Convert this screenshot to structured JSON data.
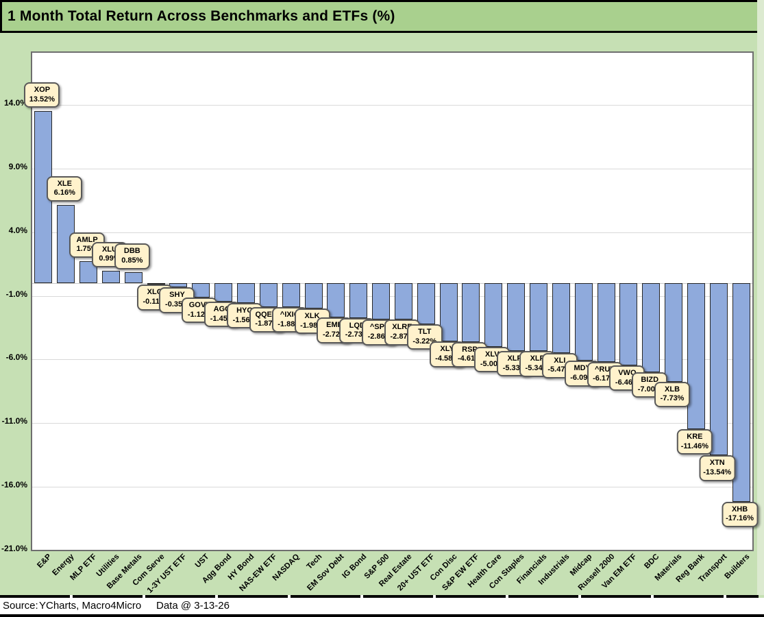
{
  "window": {
    "title": "1 Month Total Return Across Benchmarks and ETFs (%)"
  },
  "footer": {
    "source_label": "Source:",
    "source_value": "YCharts, Macro4Micro",
    "data_stamp": "Data @ 3-13-26"
  },
  "colors": {
    "title_bg": "#A9D08E",
    "chart_bg": "#C6E0B4",
    "plot_bg": "#FFFFFF",
    "gridline": "#D9D9D9",
    "bar_fill": "#8FAADC",
    "bar_border": "#262626",
    "callout_bg": "#FFF2CC",
    "callout_border": "#595959",
    "text": "#000000"
  },
  "chart_data": {
    "type": "bar",
    "title": "1 Month Total Return Across Benchmarks and ETFs (%)",
    "xlabel": "",
    "ylabel": "",
    "ylim": [
      -21.0,
      18.1
    ],
    "grid": true,
    "legend_position": "none",
    "gridline_values": [
      14,
      9,
      4,
      -1,
      -6,
      -11,
      -16,
      -21
    ],
    "ytick_labels": [
      "14.0%",
      "9.0%",
      "4.0%",
      "-1.0%",
      "-6.0%",
      "-11.0%",
      "-16.0%",
      "-21.0%"
    ],
    "bars": [
      {
        "category": "E&P",
        "ticker": "XOP",
        "value": 13.52,
        "label": "13.52%"
      },
      {
        "category": "Energy",
        "ticker": "XLE",
        "value": 6.16,
        "label": "6.16%"
      },
      {
        "category": "MLP ETF",
        "ticker": "AMLP",
        "value": 1.75,
        "label": "1.75%"
      },
      {
        "category": "Utilities",
        "ticker": "XLU",
        "value": 0.99,
        "label": "0.99%"
      },
      {
        "category": "Base Metals",
        "ticker": "DBB",
        "value": 0.85,
        "label": "0.85%"
      },
      {
        "category": "Com Serve",
        "ticker": "XLC",
        "value": -0.11,
        "label": "-0.11%"
      },
      {
        "category": "1-3Y UST ETF",
        "ticker": "SHY",
        "value": -0.35,
        "label": "-0.35%"
      },
      {
        "category": "UST",
        "ticker": "GOVT",
        "value": -1.12,
        "label": "-1.12%"
      },
      {
        "category": "Agg Bond",
        "ticker": "AGG",
        "value": -1.45,
        "label": "-1.45%"
      },
      {
        "category": "HY Bond",
        "ticker": "HYG",
        "value": -1.56,
        "label": "-1.56%"
      },
      {
        "category": "NAS-EW ETF",
        "ticker": "QQEW",
        "value": -1.87,
        "label": "-1.87%"
      },
      {
        "category": "NASDAQ",
        "ticker": "^IXIC",
        "value": -1.88,
        "label": "-1.88%"
      },
      {
        "category": "Tech",
        "ticker": "XLK",
        "value": -1.98,
        "label": "-1.98%"
      },
      {
        "category": "EM Sov Debt",
        "ticker": "EMB",
        "value": -2.72,
        "label": "-2.72%"
      },
      {
        "category": "IG Bond",
        "ticker": "LQD",
        "value": -2.73,
        "label": "-2.73%"
      },
      {
        "category": "S&P 500",
        "ticker": "^SPX",
        "value": -2.86,
        "label": "-2.86%"
      },
      {
        "category": "Real Estate",
        "ticker": "XLRE",
        "value": -2.87,
        "label": "-2.87%"
      },
      {
        "category": "20+ UST ETF",
        "ticker": "TLT",
        "value": -3.22,
        "label": "-3.22%"
      },
      {
        "category": "Con Disc",
        "ticker": "XLY",
        "value": -4.58,
        "label": "-4.58%"
      },
      {
        "category": "S&P EW ETF",
        "ticker": "RSP",
        "value": -4.61,
        "label": "-4.61%"
      },
      {
        "category": "Health Care",
        "ticker": "XLV",
        "value": -5.0,
        "label": "-5.00%"
      },
      {
        "category": "Con Staples",
        "ticker": "XLP",
        "value": -5.33,
        "label": "-5.33%"
      },
      {
        "category": "Financials",
        "ticker": "XLF",
        "value": -5.34,
        "label": "-5.34%"
      },
      {
        "category": "Industrials",
        "ticker": "XLI",
        "value": -5.47,
        "label": "-5.47%"
      },
      {
        "category": "Midcap",
        "ticker": "MDY",
        "value": -6.09,
        "label": "-6.09%"
      },
      {
        "category": "Russell 2000",
        "ticker": "^RUT",
        "value": -6.17,
        "label": "-6.17%"
      },
      {
        "category": "Van EM ETF",
        "ticker": "VWO",
        "value": -6.46,
        "label": "-6.46%"
      },
      {
        "category": "BDC",
        "ticker": "BIZD",
        "value": -7.0,
        "label": "-7.00%"
      },
      {
        "category": "Materials",
        "ticker": "XLB",
        "value": -7.73,
        "label": "-7.73%"
      },
      {
        "category": "Reg Bank",
        "ticker": "KRE",
        "value": -11.46,
        "label": "-11.46%"
      },
      {
        "category": "Transport",
        "ticker": "XTN",
        "value": -13.54,
        "label": "-13.54%"
      },
      {
        "category": "Builders",
        "ticker": "XHB",
        "value": -17.16,
        "label": "-17.16%"
      }
    ]
  }
}
